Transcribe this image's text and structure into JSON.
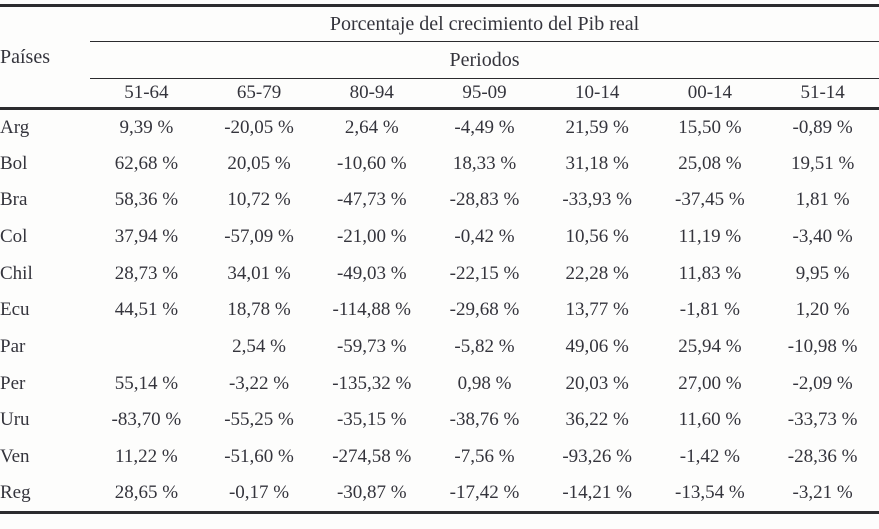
{
  "colors": {
    "text": "#34343c",
    "rule": "#2b2b2e",
    "background": "#fdfdfc"
  },
  "table": {
    "title": "Porcentaje del crecimiento del Pib real",
    "row_header": "Países",
    "col_group_header": "Periodos",
    "periods": [
      "51-64",
      "65-79",
      "80-94",
      "95-09",
      "10-14",
      "00-14",
      "51-14"
    ],
    "rows": [
      {
        "country": "Arg",
        "values": [
          "9,39 %",
          "-20,05 %",
          "2,64 %",
          "-4,49 %",
          "21,59 %",
          "15,50 %",
          "-0,89 %"
        ]
      },
      {
        "country": "Bol",
        "values": [
          "62,68 %",
          "20,05 %",
          "-10,60 %",
          "18,33 %",
          "31,18 %",
          "25,08 %",
          "19,51 %"
        ]
      },
      {
        "country": "Bra",
        "values": [
          "58,36 %",
          "10,72 %",
          "-47,73 %",
          "-28,83 %",
          "-33,93 %",
          "-37,45 %",
          "1,81 %"
        ]
      },
      {
        "country": "Col",
        "values": [
          "37,94 %",
          "-57,09 %",
          "-21,00 %",
          "-0,42 %",
          "10,56 %",
          "11,19 %",
          "-3,40 %"
        ]
      },
      {
        "country": "Chil",
        "values": [
          "28,73 %",
          "34,01 %",
          "-49,03 %",
          "-22,15 %",
          "22,28 %",
          "11,83 %",
          "9,95 %"
        ]
      },
      {
        "country": "Ecu",
        "values": [
          "44,51 %",
          "18,78 %",
          "-114,88 %",
          "-29,68 %",
          "13,77 %",
          "-1,81 %",
          "1,20 %"
        ]
      },
      {
        "country": "Par",
        "values": [
          "",
          "2,54 %",
          "-59,73 %",
          "-5,82 %",
          "49,06 %",
          "25,94 %",
          "-10,98 %"
        ]
      },
      {
        "country": "Per",
        "values": [
          "55,14 %",
          "-3,22 %",
          "-135,32 %",
          "0,98 %",
          "20,03 %",
          "27,00 %",
          "-2,09 %"
        ]
      },
      {
        "country": "Uru",
        "values": [
          "-83,70 %",
          "-55,25 %",
          "-35,15 %",
          "-38,76 %",
          "36,22 %",
          "11,60 %",
          "-33,73 %"
        ]
      },
      {
        "country": "Ven",
        "values": [
          "11,22 %",
          "-51,60 %",
          "-274,58 %",
          "-7,56 %",
          "-93,26 %",
          "-1,42 %",
          "-28,36 %"
        ]
      },
      {
        "country": "Reg",
        "values": [
          "28,65 %",
          "-0,17 %",
          "-30,87 %",
          "-17,42 %",
          "-14,21 %",
          "-13,54 %",
          "-3,21 %"
        ]
      }
    ]
  }
}
